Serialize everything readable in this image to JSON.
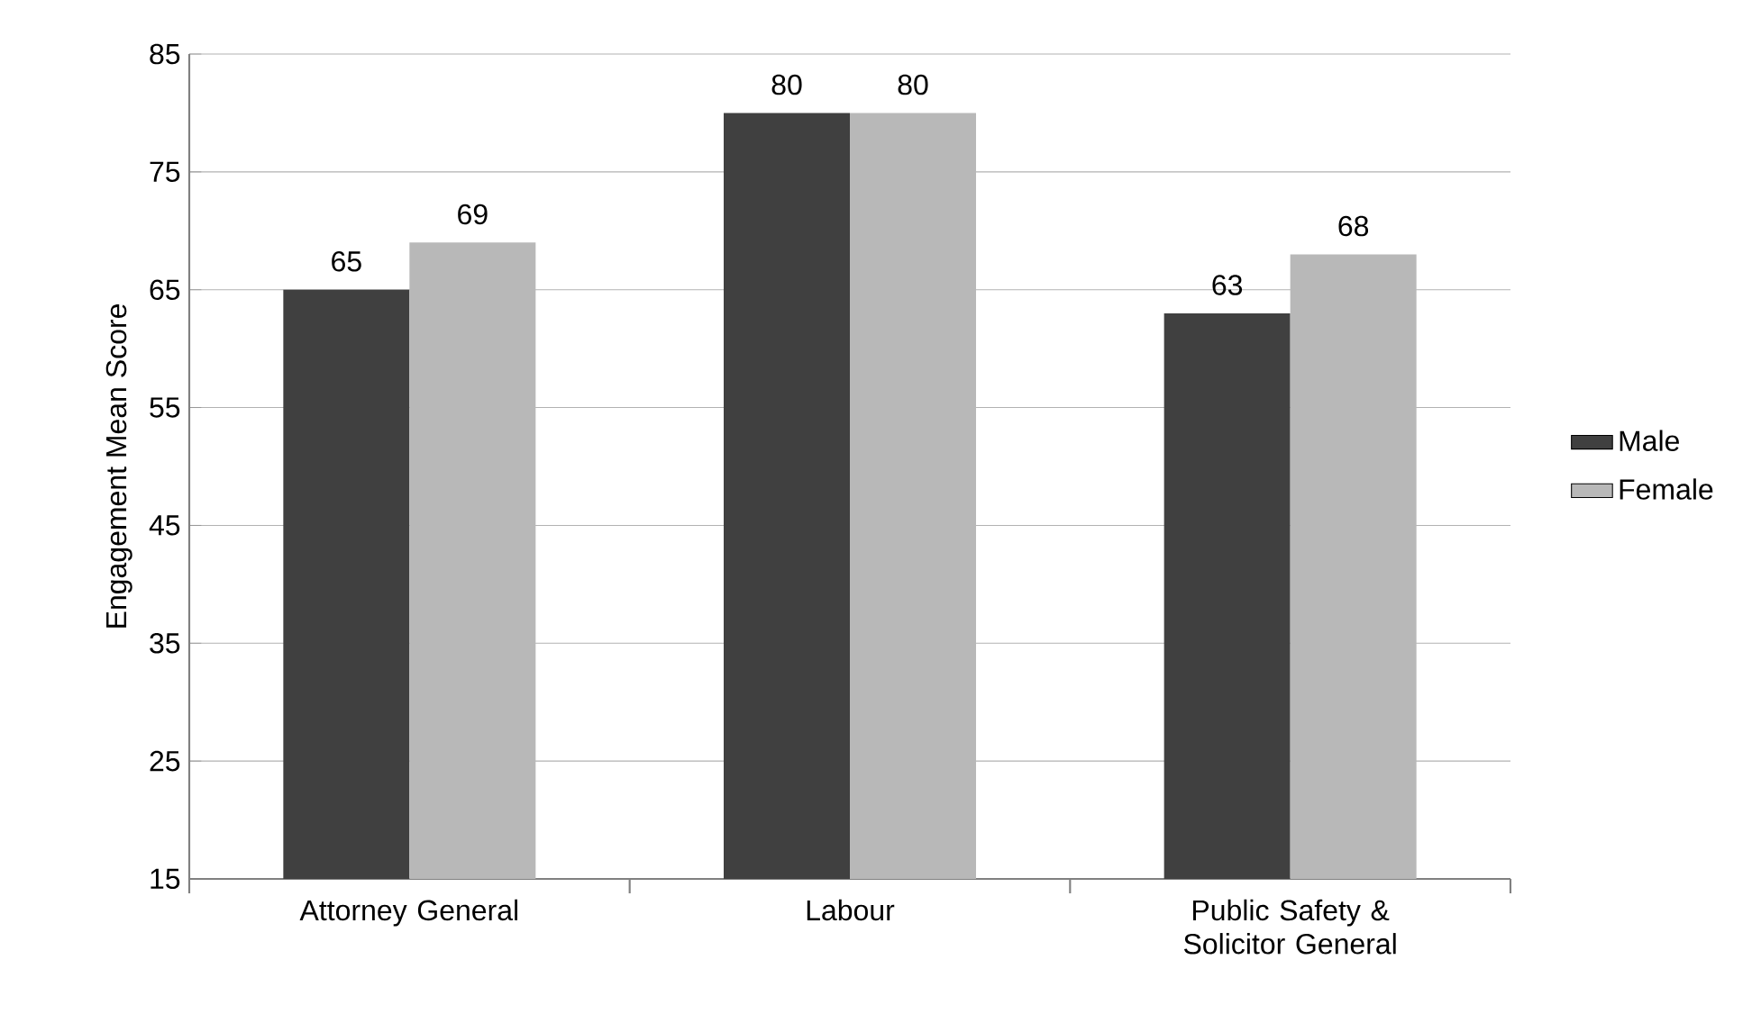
{
  "chart_data": {
    "type": "bar",
    "ylabel": "Engagement Mean Score",
    "categories": [
      "Attorney General",
      "Labour",
      "Public Safety & Solicitor General"
    ],
    "series": [
      {
        "name": "Male",
        "color": "#404040",
        "values": [
          65,
          80,
          63
        ]
      },
      {
        "name": "Female",
        "color": "#b8b8b8",
        "values": [
          69,
          80,
          68
        ]
      }
    ],
    "ylim": [
      15,
      85
    ],
    "yticks": [
      15,
      25,
      35,
      45,
      55,
      65,
      75,
      85
    ],
    "grid": "y",
    "legend": "right",
    "data_labels": true
  }
}
